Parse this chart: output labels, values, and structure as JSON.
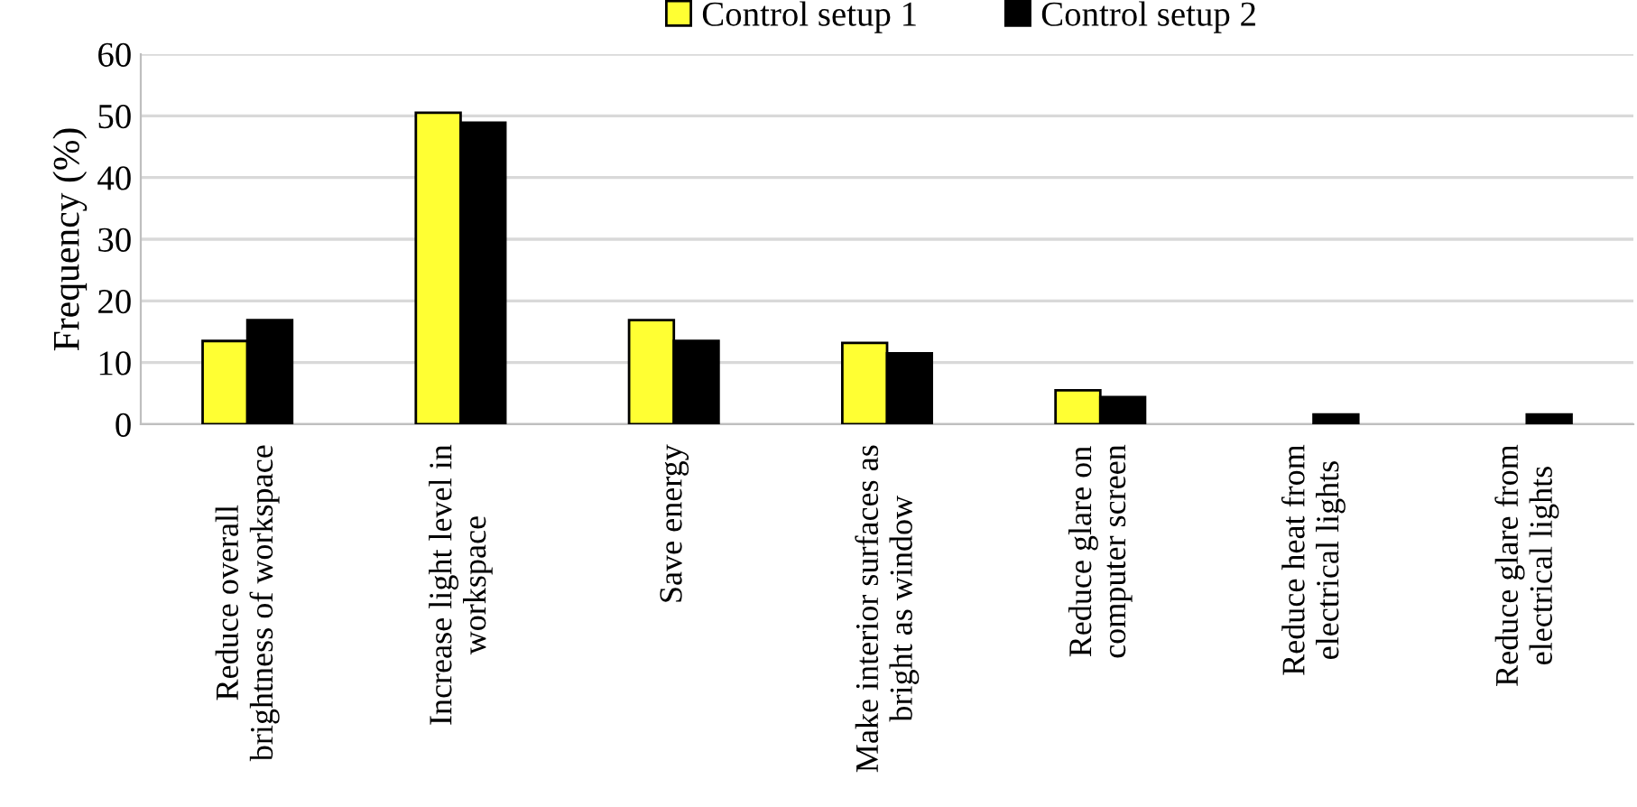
{
  "chart_data": {
    "type": "bar",
    "ylabel": "Frequency (%)",
    "categories": [
      "Reduce overall\nbrightness of workspace",
      "Increase light level in\nworkspace",
      "Save energy",
      "Make interior surfaces as\nbright as window",
      "Reduce glare on\ncomputer screen",
      "Reduce heat from\nelectrical lights",
      "Reduce glare from\nelectrical lights"
    ],
    "series": [
      {
        "name": "Control setup 1",
        "color": "#ffff33",
        "values": [
          13.5,
          50.5,
          16.9,
          13.2,
          5.5,
          0,
          0
        ]
      },
      {
        "name": "Control setup 2",
        "color": "#000000",
        "values": [
          16.9,
          48.9,
          13.5,
          11.5,
          4.4,
          1.6,
          1.6
        ]
      }
    ],
    "ylim": [
      0,
      60
    ],
    "yticks": [
      0,
      10,
      20,
      30,
      40,
      50,
      60
    ],
    "grid": "y",
    "legend": "top"
  }
}
